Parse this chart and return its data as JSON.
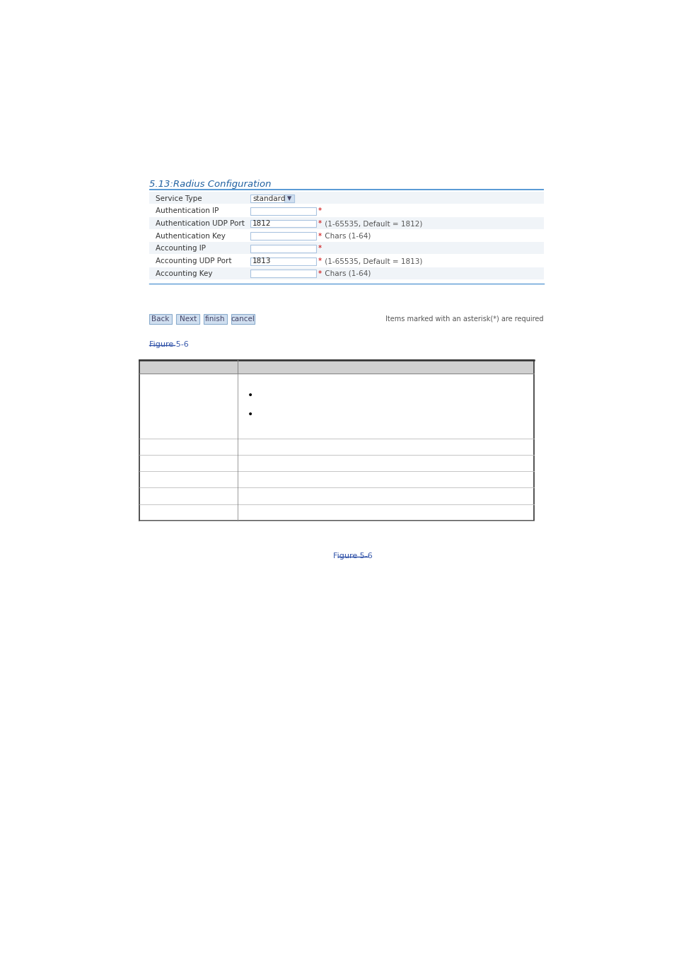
{
  "title": "5.13:Radius Configuration",
  "form_fields": [
    {
      "label": "Service Type",
      "value": "standard",
      "type": "dropdown",
      "hint": ""
    },
    {
      "label": "Authentication IP",
      "value": "",
      "type": "input",
      "hint": "*"
    },
    {
      "label": "Authentication UDP Port",
      "value": "1812",
      "type": "input",
      "hint": "* (1-65535, Default = 1812)"
    },
    {
      "label": "Authentication Key",
      "value": "",
      "type": "input",
      "hint": "* Chars (1-64)"
    },
    {
      "label": "Accounting IP",
      "value": "",
      "type": "input",
      "hint": "*"
    },
    {
      "label": "Accounting UDP Port",
      "value": "1813",
      "type": "input",
      "hint": "* (1-65535, Default = 1813)"
    },
    {
      "label": "Accounting Key",
      "value": "",
      "type": "input",
      "hint": "* Chars (1-64)"
    }
  ],
  "buttons": [
    "Back",
    "Next",
    "finish",
    "cancel"
  ],
  "button_note": "Items marked with an asterisk(*) are required",
  "table_rows": 6,
  "link_text": "Figure 5-6",
  "link_text2": "Figure 5-6",
  "bg_color": "#ffffff",
  "title_color": "#2060a0",
  "title_bar_color": "#5b9bd5",
  "form_bg_odd": "#f0f4f8",
  "form_bg_even": "#ffffff",
  "input_border_color": "#aac4e0",
  "button_bg": "#d0dff0",
  "button_border": "#8aabcc",
  "table_header_bg": "#d0d0d0",
  "hint_red": "#cc0000",
  "hint_gray": "#555555",
  "label_color": "#333333",
  "link_color": "#3355aa"
}
